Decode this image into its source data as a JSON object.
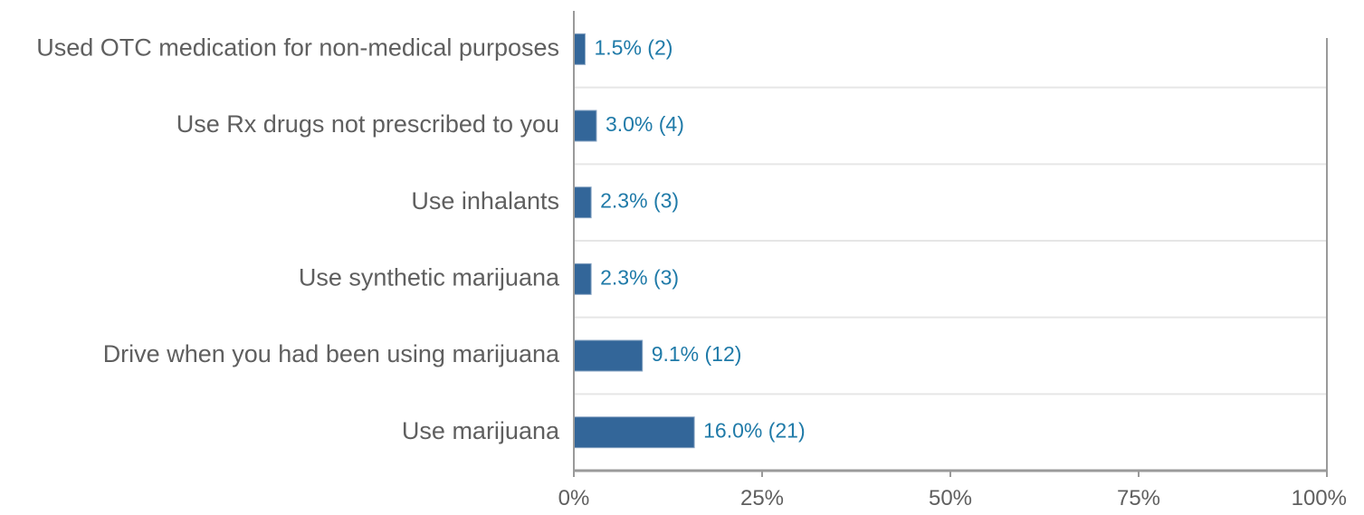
{
  "chart_data": {
    "type": "bar",
    "orientation": "horizontal",
    "categories": [
      "Used OTC medication for non-medical purposes",
      "Use Rx drugs not prescribed to you",
      "Use inhalants",
      "Use synthetic marijuana",
      "Drive when you had been using marijuana",
      "Use marijuana"
    ],
    "values": [
      1.5,
      3.0,
      2.3,
      2.3,
      9.1,
      16.0
    ],
    "counts": [
      2,
      4,
      3,
      3,
      12,
      21
    ],
    "value_labels": [
      "1.5% (2)",
      "3.0% (4)",
      "2.3% (3)",
      "2.3% (3)",
      "9.1% (12)",
      "16.0% (21)"
    ],
    "xticks": [
      "0%",
      "25%",
      "50%",
      "75%",
      "100%"
    ],
    "xtick_values": [
      0,
      25,
      50,
      75,
      100
    ],
    "xlim": [
      0,
      100
    ],
    "title": "",
    "xlabel": "",
    "ylabel": "",
    "grid": true,
    "colors": {
      "bar": "#336699",
      "value_label": "#1f7aa8",
      "text": "#5f5f5f",
      "grid": "#e6e6e6",
      "axis": "#9a9a9a"
    }
  }
}
